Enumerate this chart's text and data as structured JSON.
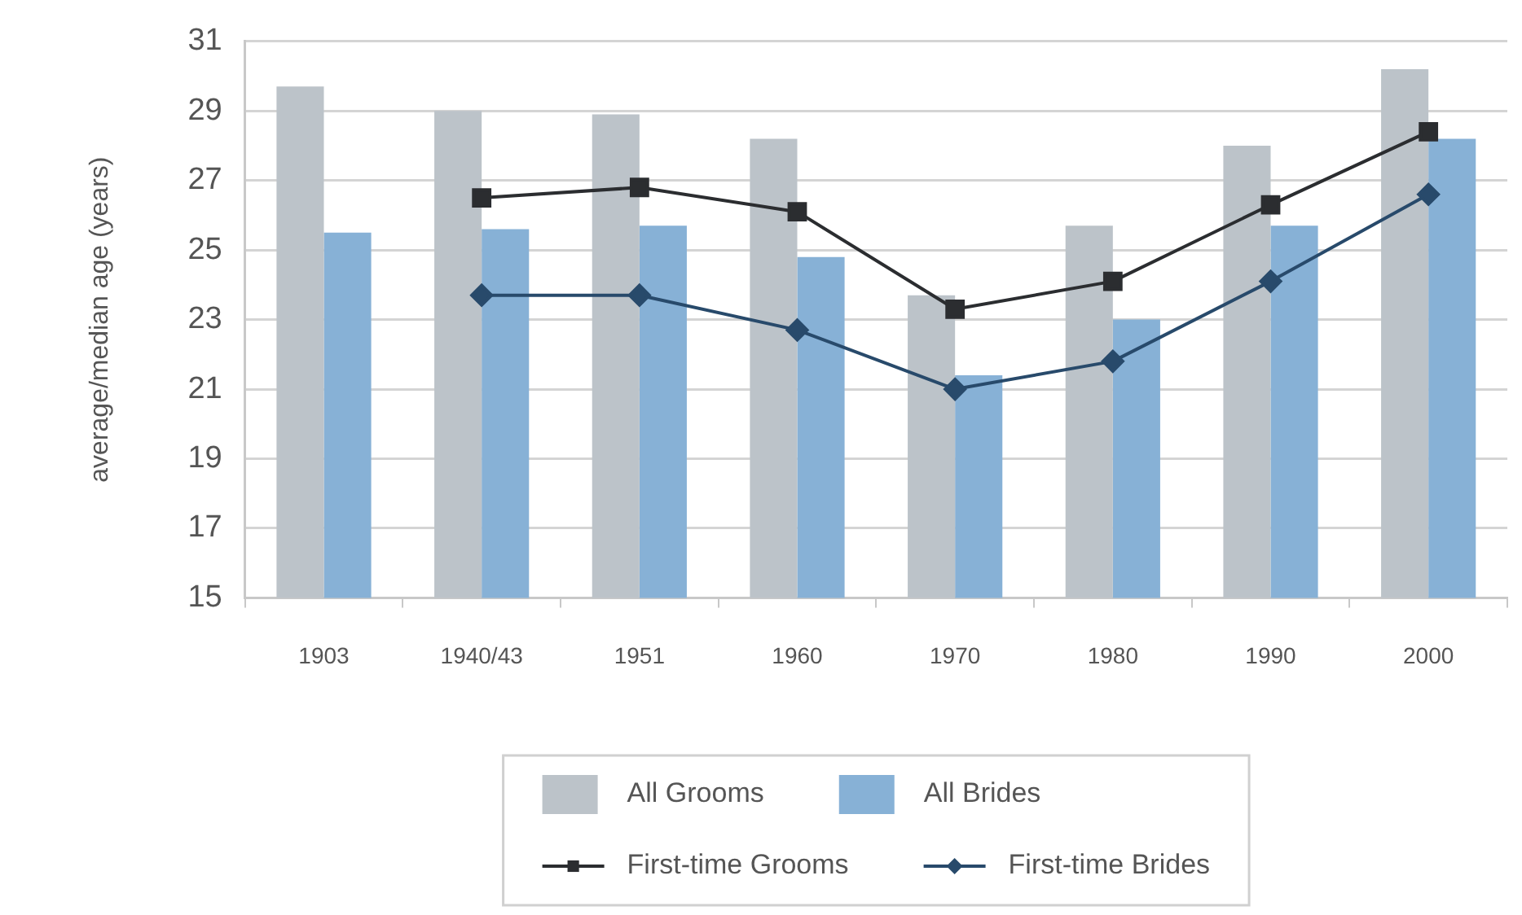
{
  "chart_data": {
    "type": "bar",
    "ylabel": "average/median age (years)",
    "categories": [
      "1903",
      "1940/43",
      "1951",
      "1960",
      "1970",
      "1980",
      "1990",
      "2000"
    ],
    "series": [
      {
        "name": "All Grooms",
        "color": "#bcc3c9",
        "values": [
          29.7,
          29.0,
          28.9,
          28.2,
          23.7,
          25.7,
          28.0,
          30.2
        ]
      },
      {
        "name": "All Brides",
        "color": "#87b1d6",
        "values": [
          25.5,
          25.6,
          25.7,
          24.8,
          21.4,
          23.0,
          25.7,
          28.2
        ]
      },
      {
        "name": "First-time Grooms",
        "type": "line",
        "marker": "square",
        "color": "#2b2d30",
        "values": [
          null,
          26.5,
          26.8,
          26.1,
          23.3,
          24.1,
          26.3,
          28.4
        ]
      },
      {
        "name": "First-time Brides",
        "type": "line",
        "marker": "diamond",
        "color": "#284a6b",
        "values": [
          null,
          23.7,
          23.7,
          22.7,
          21.0,
          21.8,
          24.1,
          26.6
        ]
      }
    ],
    "ylim": [
      15,
      31
    ],
    "yticks": [
      15,
      17,
      19,
      21,
      23,
      25,
      27,
      29,
      31
    ],
    "grid": "y",
    "legend": "bottom"
  }
}
